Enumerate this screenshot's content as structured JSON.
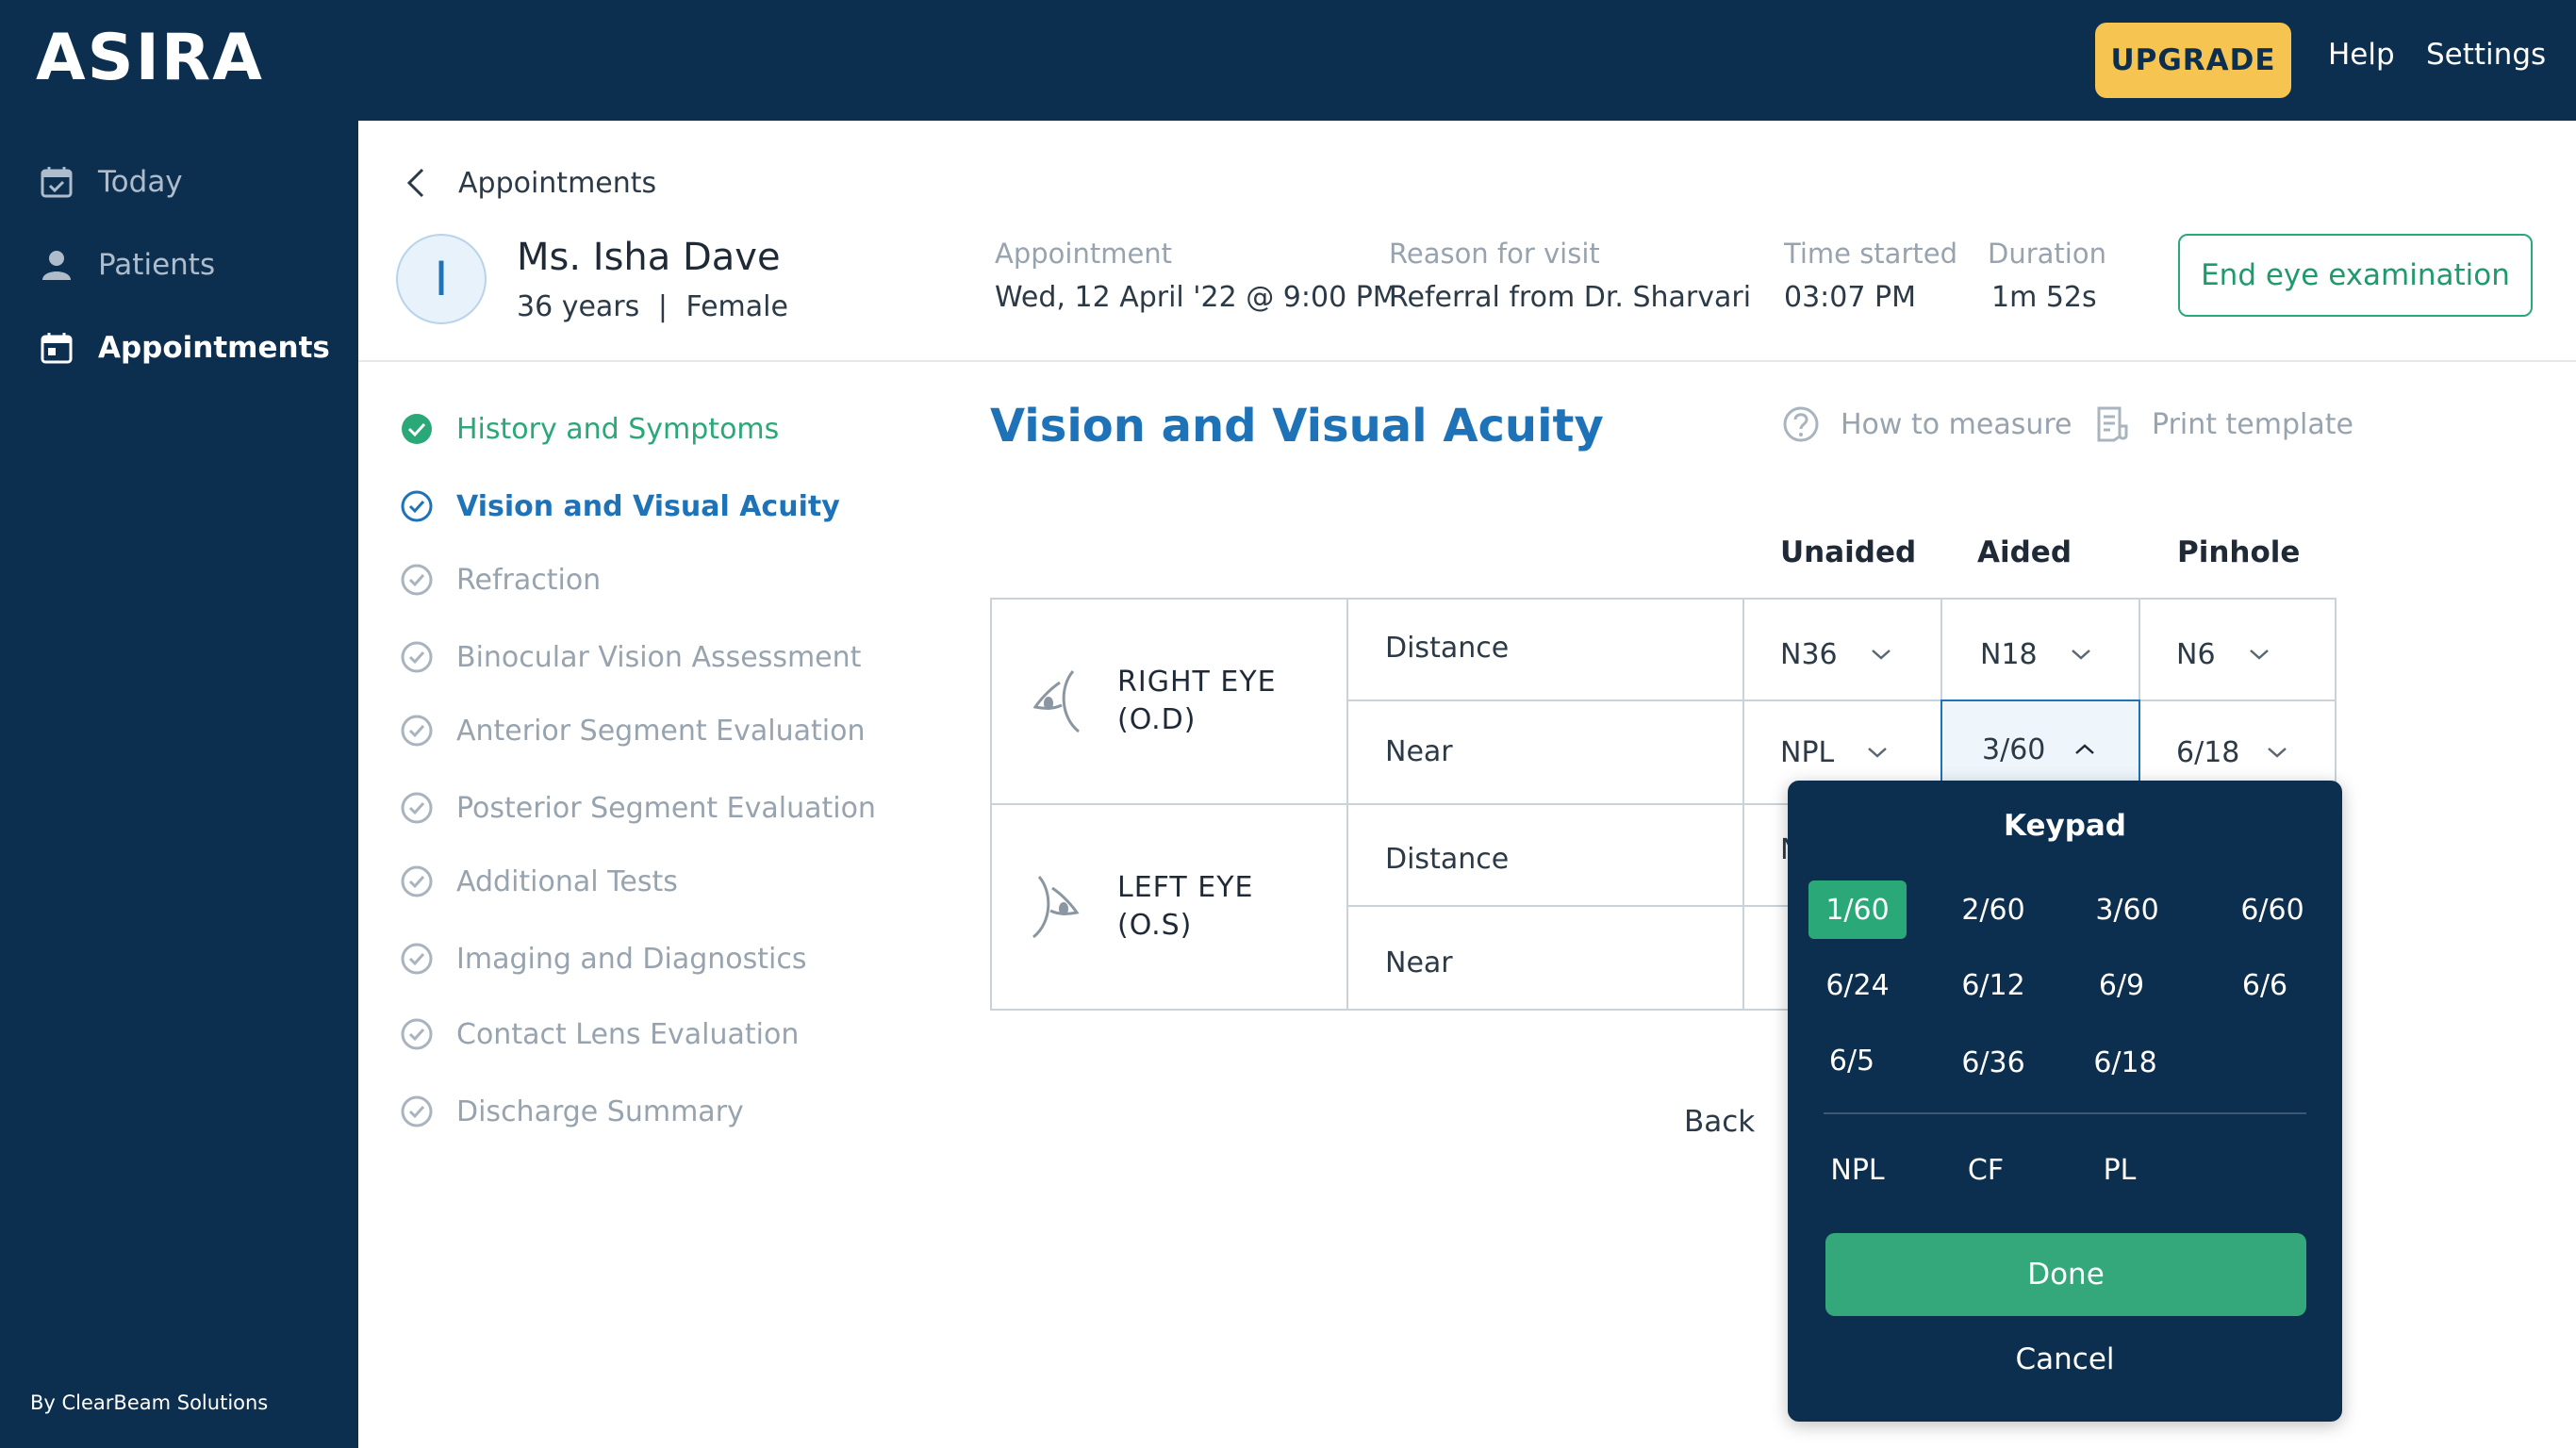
{
  "app": {
    "logo": "ASIRA",
    "upgrade_label": "UPGRADE",
    "help_label": "Help",
    "settings_label": "Settings",
    "byline": "By ClearBeam Solutions"
  },
  "sidebar": {
    "items": [
      {
        "label": "Today",
        "icon": "calendar-check-icon"
      },
      {
        "label": "Patients",
        "icon": "user-icon"
      },
      {
        "label": "Appointments",
        "icon": "calendar-icon",
        "active": true
      }
    ]
  },
  "header": {
    "back_label": "Appointments",
    "avatar_initial": "I",
    "patient_name": "Ms. Isha Dave",
    "patient_age": "36 years",
    "patient_sep": "|",
    "patient_gender": "Female",
    "appointment_label": "Appointment",
    "appointment_value": "Wed, 12 April '22 @ 9:00 PM",
    "reason_label": "Reason for visit",
    "reason_value": "Referral from Dr. Sharvari",
    "time_label": "Time started",
    "time_value": "03:07 PM",
    "duration_label": "Duration",
    "duration_value": "1m 52s",
    "end_label": "End eye examination"
  },
  "steps": [
    {
      "label": "History and Symptoms",
      "state": "done"
    },
    {
      "label": "Vision and Visual Acuity",
      "state": "current"
    },
    {
      "label": "Refraction",
      "state": "pending"
    },
    {
      "label": "Binocular Vision Assessment",
      "state": "pending"
    },
    {
      "label": "Anterior Segment Evaluation",
      "state": "pending"
    },
    {
      "label": "Posterior Segment Evaluation",
      "state": "pending"
    },
    {
      "label": "Additional Tests",
      "state": "pending"
    },
    {
      "label": "Imaging and Diagnostics",
      "state": "pending"
    },
    {
      "label": "Contact Lens Evaluation",
      "state": "pending"
    },
    {
      "label": "Discharge Summary",
      "state": "pending"
    }
  ],
  "section": {
    "title": "Vision and Visual Acuity",
    "how_label": "How to measure",
    "print_label": "Print template",
    "columns": [
      "Unaided",
      "Aided",
      "Pinhole"
    ],
    "right_eye": {
      "line1": "RIGHT EYE",
      "line2": "(O.D)"
    },
    "left_eye": {
      "line1": "LEFT EYE",
      "line2": "(O.S)"
    },
    "distance_label": "Distance",
    "near_label": "Near",
    "right_distance": [
      "N36",
      "N18",
      "N6"
    ],
    "right_near": [
      "NPL",
      "3/60",
      "6/18"
    ],
    "left_distance_partial": "N",
    "back_label": "Back"
  },
  "keypad": {
    "title": "Keypad",
    "keys": [
      "1/60",
      "2/60",
      "3/60",
      "6/60",
      "6/24",
      "6/12",
      "6/9",
      "6/6",
      "6/5",
      "6/36",
      "6/18"
    ],
    "extra_keys": [
      "NPL",
      "CF",
      "PL"
    ],
    "selected_key": "1/60",
    "done_label": "Done",
    "cancel_label": "Cancel"
  },
  "colors": {
    "navy": "#0d2f4f",
    "accent_blue": "#1e73b8",
    "green": "#2aa878",
    "upgrade_yellow": "#f5c451"
  }
}
